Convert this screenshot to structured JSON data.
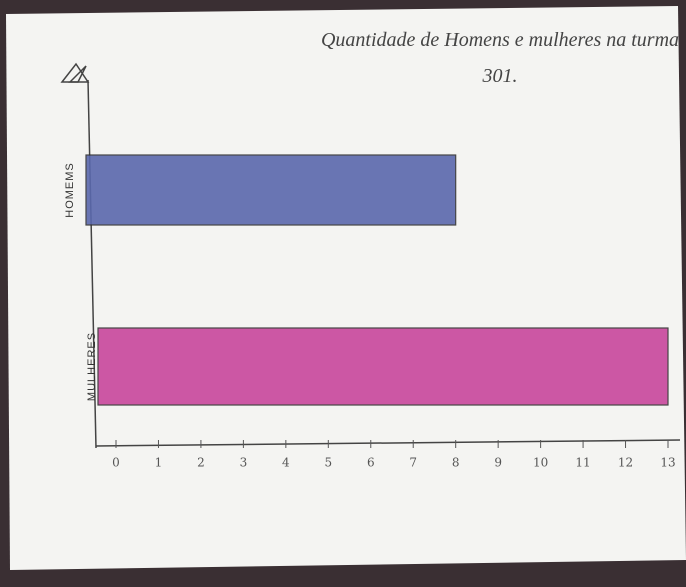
{
  "chart_data": {
    "type": "hbar",
    "title": "Quantidade de Homens e mulheres na turma 301.",
    "categories": [
      "HOMEMS",
      "MULHERES"
    ],
    "values": [
      8,
      13
    ],
    "colors": [
      "#5a68ad",
      "#c8479c"
    ],
    "xlim": [
      0,
      13
    ],
    "xticks": [
      0,
      1,
      2,
      3,
      4,
      5,
      6,
      7,
      8,
      9,
      10,
      11,
      12,
      13
    ]
  }
}
